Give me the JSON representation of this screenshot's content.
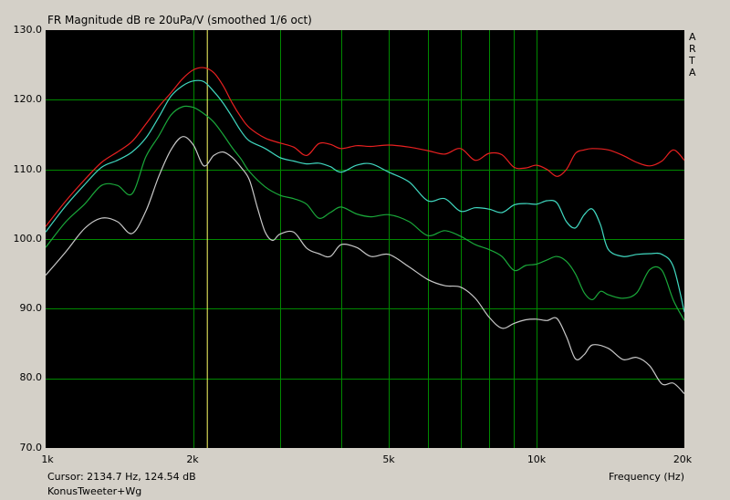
{
  "chart_data": {
    "type": "line",
    "title": "FR Magnitude dB re 20uPa/V (smoothed 1/6 oct)",
    "xlabel": "Frequency (Hz)",
    "ylabel": "",
    "xscale": "log",
    "xlim": [
      1000,
      20000
    ],
    "ylim": [
      70,
      130
    ],
    "grid": true,
    "y_ticks": [
      "130.0",
      "120.0",
      "110.0",
      "100.0",
      "90.0",
      "80.0",
      "70.0"
    ],
    "x_ticks": [
      {
        "value": 1000,
        "label": "1k"
      },
      {
        "value": 2000,
        "label": "2k"
      },
      {
        "value": 5000,
        "label": "5k"
      },
      {
        "value": 10000,
        "label": "10k"
      },
      {
        "value": 20000,
        "label": "20k"
      }
    ],
    "watermark": [
      "A",
      "R",
      "T",
      "A"
    ],
    "cursor_text": "Cursor: 2134.7 Hz, 124.54 dB",
    "cursor_freq": 2134.7,
    "footer_label": "KonusTweeter+Wg",
    "colors": {
      "background": "#000000",
      "grid": "#008800",
      "cursor": "#ffff66",
      "axes_frame": "#d4d0c8"
    },
    "series": [
      {
        "color": "#e82020",
        "x": [
          1000,
          1100,
          1200,
          1300,
          1400,
          1500,
          1600,
          1700,
          1800,
          1900,
          2000,
          2100,
          2200,
          2300,
          2400,
          2500,
          2600,
          2800,
          3000,
          3200,
          3400,
          3600,
          3800,
          4000,
          4300,
          4600,
          5000,
          5500,
          6000,
          6500,
          7000,
          7500,
          8000,
          8500,
          9000,
          9500,
          10000,
          10500,
          11000,
          11500,
          12000,
          12500,
          13000,
          14000,
          15000,
          16000,
          17000,
          18000,
          19000,
          20000
        ],
        "y": [
          101.8,
          105.5,
          108.5,
          111,
          112.5,
          114,
          116.5,
          119,
          121,
          123,
          124.3,
          124.6,
          123.9,
          122,
          119.5,
          117.5,
          116,
          114.5,
          113.8,
          113.2,
          112,
          113.7,
          113.6,
          113,
          113.4,
          113.3,
          113.5,
          113.2,
          112.7,
          112.2,
          113,
          111.3,
          112.3,
          112.1,
          110.3,
          110.2,
          110.6,
          110,
          109,
          110,
          112.3,
          112.8,
          113,
          112.8,
          112,
          111,
          110.5,
          111.2,
          112.8,
          111.3
        ]
      },
      {
        "color": "#40d8c0",
        "x": [
          1000,
          1100,
          1200,
          1300,
          1400,
          1500,
          1600,
          1700,
          1800,
          1900,
          2000,
          2100,
          2200,
          2300,
          2400,
          2500,
          2600,
          2800,
          3000,
          3200,
          3400,
          3600,
          3800,
          4000,
          4300,
          4600,
          5000,
          5500,
          6000,
          6500,
          7000,
          7500,
          8000,
          8500,
          9000,
          9500,
          10000,
          10500,
          11000,
          11500,
          12000,
          12500,
          13000,
          13500,
          14000,
          15000,
          16000,
          17000,
          18000,
          19000,
          20000
        ],
        "y": [
          101,
          104.8,
          107.8,
          110.3,
          111.3,
          112.5,
          114.5,
          117.5,
          120.5,
          122,
          122.7,
          122.6,
          121.2,
          119.5,
          117.5,
          115.5,
          114.1,
          113,
          111.7,
          111.2,
          110.8,
          110.9,
          110.4,
          109.6,
          110.6,
          110.8,
          109.6,
          108.2,
          105.5,
          105.8,
          104,
          104.5,
          104.3,
          103.8,
          104.9,
          105.1,
          105,
          105.5,
          105.2,
          102.5,
          101.6,
          103.5,
          104.3,
          102,
          98.5,
          97.5,
          97.8,
          97.9,
          97.8,
          96,
          89.5
        ]
      },
      {
        "color": "#1aa83a",
        "x": [
          1000,
          1100,
          1200,
          1300,
          1400,
          1500,
          1600,
          1700,
          1800,
          1900,
          2000,
          2100,
          2200,
          2300,
          2400,
          2500,
          2600,
          2800,
          3000,
          3200,
          3400,
          3600,
          3800,
          4000,
          4300,
          4600,
          5000,
          5500,
          6000,
          6500,
          7000,
          7500,
          8000,
          8500,
          9000,
          9500,
          10000,
          10500,
          11000,
          11500,
          12000,
          12500,
          13000,
          13500,
          14000,
          15000,
          16000,
          17000,
          18000,
          19000,
          20000
        ],
        "y": [
          98.8,
          102.5,
          105,
          107.7,
          107.7,
          106.5,
          111.8,
          114.8,
          117.8,
          119,
          118.9,
          118,
          116.8,
          115,
          113.1,
          111.5,
          109.7,
          107.5,
          106.3,
          105.8,
          105,
          103,
          103.8,
          104.6,
          103.6,
          103.2,
          103.5,
          102.5,
          100.5,
          101.2,
          100.4,
          99.2,
          98.5,
          97.5,
          95.5,
          96.2,
          96.4,
          97,
          97.5,
          96.8,
          95,
          92.3,
          91.3,
          92.5,
          92,
          91.5,
          92.3,
          95.6,
          95.5,
          91.2,
          88.3
        ]
      },
      {
        "color": "#c8c8c8",
        "x": [
          1000,
          1100,
          1200,
          1300,
          1400,
          1500,
          1600,
          1700,
          1800,
          1900,
          2000,
          2100,
          2200,
          2300,
          2400,
          2500,
          2600,
          2700,
          2800,
          2900,
          3000,
          3200,
          3400,
          3600,
          3800,
          4000,
          4300,
          4600,
          5000,
          5500,
          6000,
          6500,
          7000,
          7500,
          8000,
          8500,
          9000,
          9500,
          10000,
          10500,
          11000,
          11500,
          12000,
          12500,
          13000,
          14000,
          15000,
          16000,
          17000,
          18000,
          19000,
          20000
        ],
        "y": [
          94.8,
          98.2,
          101.5,
          103,
          102.5,
          100.8,
          104,
          109,
          112.8,
          114.7,
          113.5,
          110.5,
          112,
          112.5,
          111.7,
          110.3,
          108.5,
          104.5,
          101,
          99.8,
          100.7,
          101,
          98.7,
          97.9,
          97.5,
          99.2,
          98.8,
          97.5,
          97.8,
          96,
          94.2,
          93.3,
          93.1,
          91.5,
          88.8,
          87.2,
          87.9,
          88.4,
          88.5,
          88.3,
          88.6,
          86,
          82.8,
          83.4,
          84.8,
          84.3,
          82.7,
          83,
          81.8,
          79.2,
          79.3,
          77.8
        ]
      }
    ]
  }
}
